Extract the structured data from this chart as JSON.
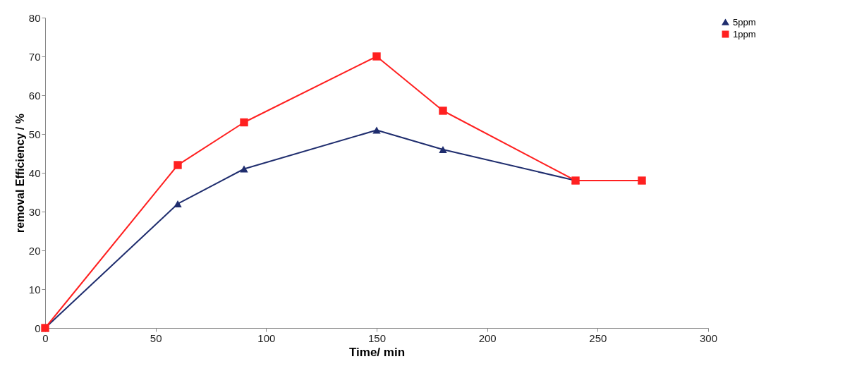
{
  "chart_data": {
    "type": "line",
    "xlabel": "Time/ min",
    "ylabel": "removal Efficiency / %",
    "x": [
      0,
      60,
      90,
      150,
      180,
      240,
      270
    ],
    "series": [
      {
        "name": "5ppm",
        "color": "#1f2d6e",
        "marker": "triangle",
        "values": [
          0,
          32,
          41,
          51,
          46,
          38,
          38
        ]
      },
      {
        "name": "1ppm",
        "color": "#ff2020",
        "marker": "square",
        "values": [
          0,
          42,
          53,
          70,
          56,
          38,
          38
        ]
      }
    ],
    "xlim": [
      0,
      300
    ],
    "xticks": [
      0,
      50,
      100,
      150,
      200,
      250,
      300
    ],
    "ylim": [
      0,
      80
    ],
    "yticks": [
      0,
      10,
      20,
      30,
      40,
      50,
      60,
      70,
      80
    ],
    "grid": false,
    "legend": "right"
  }
}
